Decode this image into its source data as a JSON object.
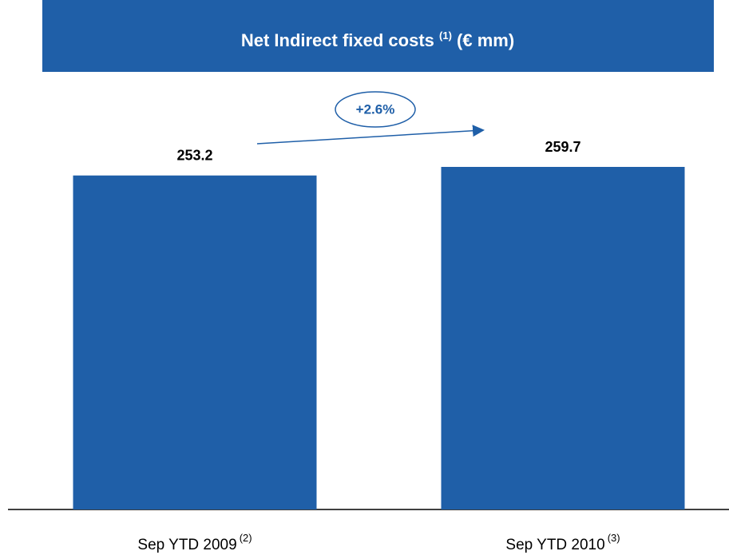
{
  "chart_data": {
    "type": "bar",
    "title": "Net Indirect fixed costs",
    "title_note": "(1)",
    "title_unit": "(€ mm)",
    "categories": [
      "Sep YTD 2009",
      "Sep YTD 2010"
    ],
    "category_notes": [
      "(2)",
      "(3)"
    ],
    "values": [
      253.2,
      259.7
    ],
    "color": "#1f5fa8",
    "annotation": "+2.6%"
  }
}
